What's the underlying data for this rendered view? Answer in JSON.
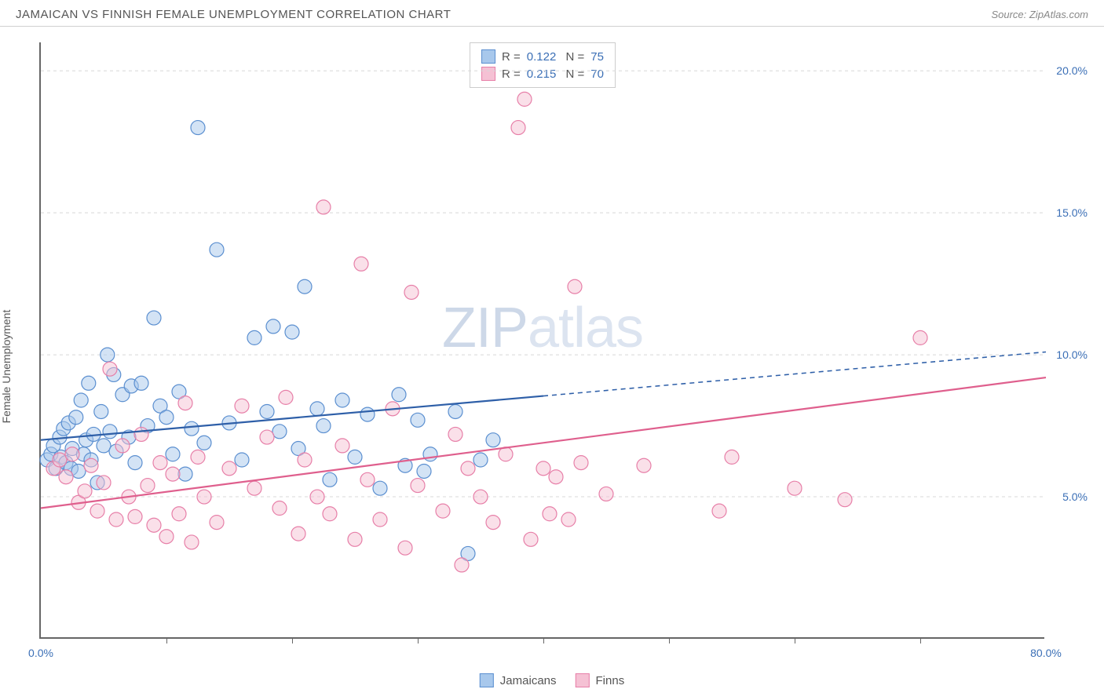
{
  "header": {
    "title": "JAMAICAN VS FINNISH FEMALE UNEMPLOYMENT CORRELATION CHART",
    "source": "Source: ZipAtlas.com"
  },
  "chart": {
    "type": "scatter",
    "ylabel": "Female Unemployment",
    "watermark_a": "ZIP",
    "watermark_b": "atlas",
    "background_color": "#ffffff",
    "grid_color": "#d8d8d8",
    "axis_color": "#666666",
    "xlim": [
      0,
      80
    ],
    "ylim": [
      0,
      21
    ],
    "xtick_major": [
      0,
      80
    ],
    "xtick_minor": [
      10,
      20,
      30,
      40,
      50,
      60,
      70
    ],
    "xtick_labels": [
      "0.0%",
      "80.0%"
    ],
    "ytick_positions": [
      5,
      10,
      15,
      20
    ],
    "ytick_labels": [
      "5.0%",
      "10.0%",
      "15.0%",
      "20.0%"
    ],
    "marker_radius": 9,
    "marker_opacity": 0.5,
    "line_width": 2.2,
    "series": [
      {
        "name": "Jamaicans",
        "color_fill": "#a8c8ec",
        "color_stroke": "#5b8fd0",
        "line_color": "#2e5fa8",
        "R": "0.122",
        "N": "75",
        "trend": {
          "x1": 0,
          "y1": 7.0,
          "x2": 80,
          "y2": 10.1,
          "solid_until_x": 40
        },
        "points": [
          [
            0.5,
            6.3
          ],
          [
            0.8,
            6.5
          ],
          [
            1.0,
            6.8
          ],
          [
            1.2,
            6.0
          ],
          [
            1.5,
            7.1
          ],
          [
            1.6,
            6.4
          ],
          [
            1.8,
            7.4
          ],
          [
            2.0,
            6.2
          ],
          [
            2.2,
            7.6
          ],
          [
            2.4,
            6.0
          ],
          [
            2.5,
            6.7
          ],
          [
            2.8,
            7.8
          ],
          [
            3.0,
            5.9
          ],
          [
            3.2,
            8.4
          ],
          [
            3.4,
            6.5
          ],
          [
            3.6,
            7.0
          ],
          [
            3.8,
            9.0
          ],
          [
            4.0,
            6.3
          ],
          [
            4.2,
            7.2
          ],
          [
            4.5,
            5.5
          ],
          [
            4.8,
            8.0
          ],
          [
            5.0,
            6.8
          ],
          [
            5.3,
            10.0
          ],
          [
            5.5,
            7.3
          ],
          [
            5.8,
            9.3
          ],
          [
            6.0,
            6.6
          ],
          [
            6.5,
            8.6
          ],
          [
            7.0,
            7.1
          ],
          [
            7.2,
            8.9
          ],
          [
            7.5,
            6.2
          ],
          [
            8.0,
            9.0
          ],
          [
            8.5,
            7.5
          ],
          [
            9.0,
            11.3
          ],
          [
            9.5,
            8.2
          ],
          [
            10.0,
            7.8
          ],
          [
            10.5,
            6.5
          ],
          [
            11.0,
            8.7
          ],
          [
            11.5,
            5.8
          ],
          [
            12.0,
            7.4
          ],
          [
            12.5,
            18.0
          ],
          [
            13.0,
            6.9
          ],
          [
            14.0,
            13.7
          ],
          [
            15.0,
            7.6
          ],
          [
            16.0,
            6.3
          ],
          [
            17.0,
            10.6
          ],
          [
            18.0,
            8.0
          ],
          [
            18.5,
            11.0
          ],
          [
            19.0,
            7.3
          ],
          [
            20.0,
            10.8
          ],
          [
            20.5,
            6.7
          ],
          [
            21.0,
            12.4
          ],
          [
            22.0,
            8.1
          ],
          [
            22.5,
            7.5
          ],
          [
            23.0,
            5.6
          ],
          [
            24.0,
            8.4
          ],
          [
            25.0,
            6.4
          ],
          [
            26.0,
            7.9
          ],
          [
            27.0,
            5.3
          ],
          [
            28.5,
            8.6
          ],
          [
            29.0,
            6.1
          ],
          [
            30.0,
            7.7
          ],
          [
            30.5,
            5.9
          ],
          [
            31.0,
            6.5
          ],
          [
            33.0,
            8.0
          ],
          [
            34.0,
            3.0
          ],
          [
            35.0,
            6.3
          ],
          [
            36.0,
            7.0
          ]
        ]
      },
      {
        "name": "Finns",
        "color_fill": "#f5c1d4",
        "color_stroke": "#e77fa8",
        "line_color": "#df5f8d",
        "R": "0.215",
        "N": "70",
        "trend": {
          "x1": 0,
          "y1": 4.6,
          "x2": 80,
          "y2": 9.2,
          "solid_until_x": 80
        },
        "points": [
          [
            1.0,
            6.0
          ],
          [
            1.5,
            6.3
          ],
          [
            2.0,
            5.7
          ],
          [
            2.5,
            6.5
          ],
          [
            3.0,
            4.8
          ],
          [
            3.5,
            5.2
          ],
          [
            4.0,
            6.1
          ],
          [
            4.5,
            4.5
          ],
          [
            5.0,
            5.5
          ],
          [
            5.5,
            9.5
          ],
          [
            6.0,
            4.2
          ],
          [
            6.5,
            6.8
          ],
          [
            7.0,
            5.0
          ],
          [
            7.5,
            4.3
          ],
          [
            8.0,
            7.2
          ],
          [
            8.5,
            5.4
          ],
          [
            9.0,
            4.0
          ],
          [
            9.5,
            6.2
          ],
          [
            10.0,
            3.6
          ],
          [
            10.5,
            5.8
          ],
          [
            11.0,
            4.4
          ],
          [
            11.5,
            8.3
          ],
          [
            12.0,
            3.4
          ],
          [
            12.5,
            6.4
          ],
          [
            13.0,
            5.0
          ],
          [
            14.0,
            4.1
          ],
          [
            15.0,
            6.0
          ],
          [
            16.0,
            8.2
          ],
          [
            17.0,
            5.3
          ],
          [
            18.0,
            7.1
          ],
          [
            19.0,
            4.6
          ],
          [
            19.5,
            8.5
          ],
          [
            20.5,
            3.7
          ],
          [
            21.0,
            6.3
          ],
          [
            22.0,
            5.0
          ],
          [
            22.5,
            15.2
          ],
          [
            23.0,
            4.4
          ],
          [
            24.0,
            6.8
          ],
          [
            25.0,
            3.5
          ],
          [
            25.5,
            13.2
          ],
          [
            26.0,
            5.6
          ],
          [
            27.0,
            4.2
          ],
          [
            28.0,
            8.1
          ],
          [
            29.0,
            3.2
          ],
          [
            29.5,
            12.2
          ],
          [
            30.0,
            5.4
          ],
          [
            32.0,
            4.5
          ],
          [
            33.0,
            7.2
          ],
          [
            33.5,
            2.6
          ],
          [
            34.0,
            6.0
          ],
          [
            35.0,
            5.0
          ],
          [
            36.0,
            4.1
          ],
          [
            37.0,
            6.5
          ],
          [
            38.0,
            18.0
          ],
          [
            38.5,
            19.0
          ],
          [
            39.0,
            3.5
          ],
          [
            40.0,
            6.0
          ],
          [
            40.5,
            4.4
          ],
          [
            41.0,
            5.7
          ],
          [
            42.0,
            4.2
          ],
          [
            42.5,
            12.4
          ],
          [
            43.0,
            6.2
          ],
          [
            45.0,
            5.1
          ],
          [
            48.0,
            6.1
          ],
          [
            54.0,
            4.5
          ],
          [
            55.0,
            6.4
          ],
          [
            60.0,
            5.3
          ],
          [
            64.0,
            4.9
          ],
          [
            70.0,
            10.6
          ]
        ]
      }
    ]
  },
  "legend_bottom": [
    {
      "label": "Jamaicans",
      "fill": "#a8c8ec",
      "stroke": "#5b8fd0"
    },
    {
      "label": "Finns",
      "fill": "#f5c1d4",
      "stroke": "#e77fa8"
    }
  ]
}
